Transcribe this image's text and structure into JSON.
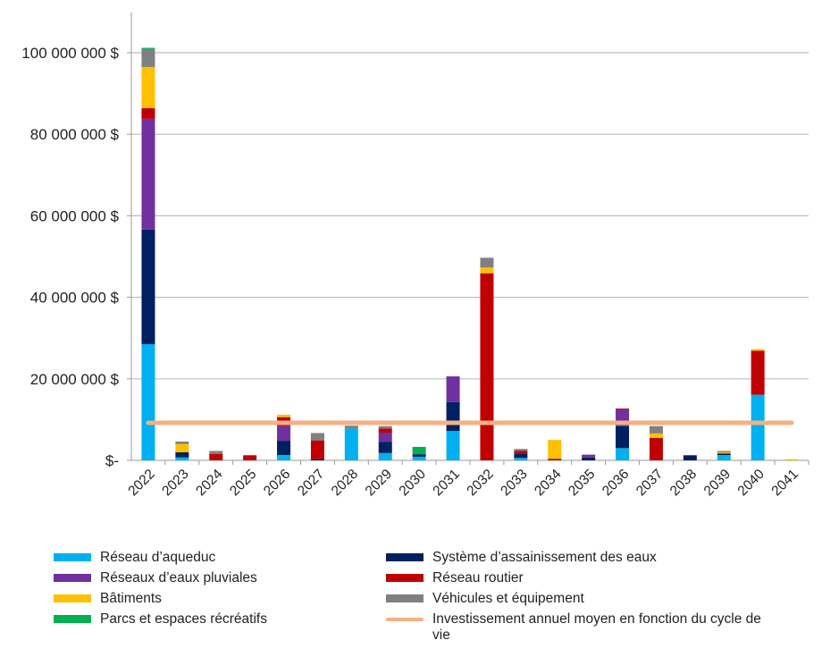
{
  "chart_data": {
    "type": "bar",
    "stacked": true,
    "categories": [
      "2022",
      "2023",
      "2024",
      "2025",
      "2026",
      "2027",
      "2028",
      "2029",
      "2030",
      "2031",
      "2032",
      "2033",
      "2034",
      "2035",
      "2036",
      "2037",
      "2038",
      "2039",
      "2040",
      "2041"
    ],
    "ylim": [
      0,
      100000000
    ],
    "yticks": [
      0,
      20000000,
      40000000,
      60000000,
      80000000,
      100000000
    ],
    "ytick_labels": [
      "$-",
      "20 000 000 $",
      "40 000 000 $",
      "60 000 000 $",
      "80 000 000 $",
      "100 000 000 $"
    ],
    "grid": true,
    "legend_position": "bottom",
    "series": [
      {
        "name": "Réseau d’aqueduc",
        "color": "#00b0f0",
        "values": [
          28.5,
          0.7,
          0,
          0,
          1.3,
          0,
          7.8,
          1.8,
          0.9,
          7.2,
          0,
          0.6,
          0,
          0,
          3.0,
          0,
          0,
          1.3,
          16.1,
          0
        ]
      },
      {
        "name": "Système d’assainissement des eaux",
        "color": "#002060",
        "values": [
          28.1,
          1.3,
          0,
          0,
          3.5,
          0.3,
          0,
          2.7,
          0.6,
          7.1,
          0,
          1.1,
          0,
          0.7,
          5.4,
          0,
          1.25,
          0.4,
          0,
          0
        ]
      },
      {
        "name": "Réseaux d’eaux pluviales",
        "color": "#7030a0",
        "values": [
          27.2,
          0,
          0,
          0,
          3.6,
          0,
          0,
          2.3,
          0,
          6.3,
          0,
          0,
          0,
          0.7,
          4.1,
          0,
          0,
          0,
          0,
          0
        ]
      },
      {
        "name": "Réseau routier",
        "color": "#c00000",
        "values": [
          2.6,
          0,
          1.6,
          1.25,
          2.2,
          4.6,
          0,
          1.0,
          0,
          0,
          45.9,
          0.6,
          0.4,
          0,
          0.2,
          5.5,
          0,
          0,
          10.8,
          0
        ]
      },
      {
        "name": "Bâtiments",
        "color": "#ffc000",
        "values": [
          10.1,
          2.0,
          0,
          0,
          0.6,
          0,
          0,
          0,
          0,
          0,
          1.4,
          0,
          4.6,
          0,
          0,
          1.1,
          0,
          0.3,
          0.4,
          0.3
        ]
      },
      {
        "name": "Véhicules et équipement",
        "color": "#808080",
        "values": [
          4.4,
          0.6,
          0.7,
          0,
          0,
          1.8,
          0.7,
          0.6,
          0,
          0,
          2.4,
          0.5,
          0,
          0,
          0,
          1.8,
          0,
          0.3,
          0,
          0
        ]
      },
      {
        "name": "Parcs et espaces récréatifs",
        "color": "#00b050",
        "values": [
          0.3,
          0,
          0,
          0,
          0,
          0,
          0,
          0,
          1.8,
          0,
          0,
          0,
          0,
          0,
          0,
          0,
          0,
          0,
          0,
          0
        ]
      }
    ],
    "value_unit_multiplier": 1000000,
    "reference_line": {
      "name": "Investissement annuel moyen en fonction du cycle de vie",
      "color": "#f4b183",
      "value": 9200000
    }
  },
  "legend_order": [
    0,
    1,
    2,
    3,
    4,
    5,
    6
  ]
}
